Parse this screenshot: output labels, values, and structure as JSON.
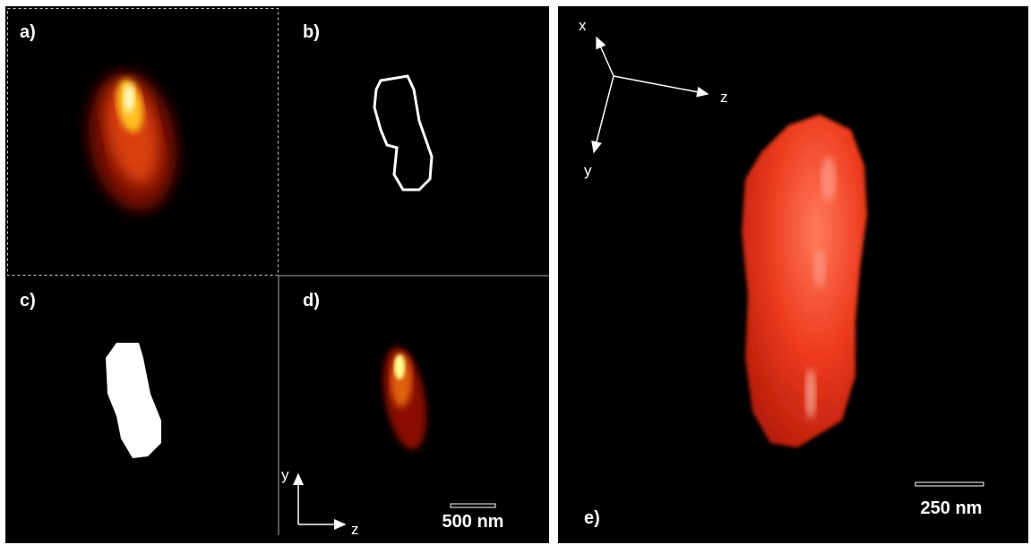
{
  "panels": [
    {
      "label": "a)"
    },
    {
      "label": "b)"
    },
    {
      "label": "c)"
    },
    {
      "label": "d)",
      "axis_vertical": "y",
      "axis_horizontal": "z",
      "scale_bar": "500 nm"
    },
    {
      "label": "e)",
      "axis_x": "x",
      "axis_z": "z",
      "axis_y": "y",
      "scale_bar": "250 nm"
    }
  ]
}
